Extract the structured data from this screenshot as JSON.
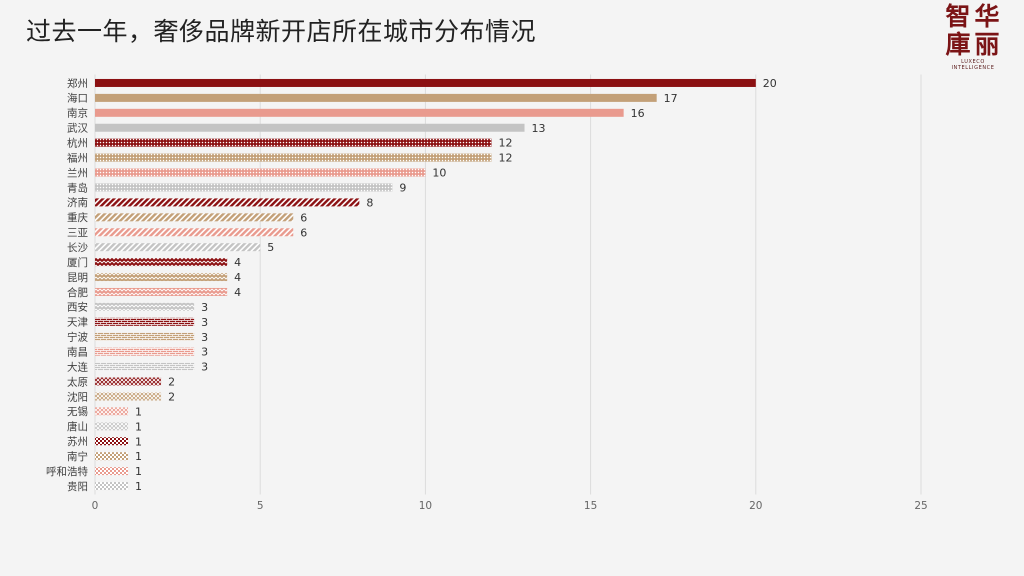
{
  "slide": {
    "title": "过去一年，奢侈品牌新开店所在城市分布情况"
  },
  "logo": {
    "chars": [
      "智",
      "华",
      "庫",
      "丽"
    ],
    "en_line1": "LUXECO",
    "en_line2": "INTELLIGENCE"
  },
  "colors": {
    "background": "#f4f4f4",
    "title_text": "#222222",
    "logo": "#7b1416",
    "bar_palette": [
      "#8b1012",
      "#c3a078",
      "#e99a8e",
      "#c4c4c4"
    ],
    "grid": "#dcdcdc"
  },
  "chart_data": {
    "type": "bar",
    "orientation": "horizontal",
    "categories": [
      "郑州",
      "海口",
      "南京",
      "武汉",
      "杭州",
      "福州",
      "兰州",
      "青岛",
      "济南",
      "重庆",
      "三亚",
      "长沙",
      "厦门",
      "昆明",
      "合肥",
      "西安",
      "天津",
      "宁波",
      "南昌",
      "大连",
      "太原",
      "沈阳",
      "无锡",
      "唐山",
      "苏州",
      "南宁",
      "呼和浩特",
      "贵阳"
    ],
    "values": [
      20,
      17,
      16,
      13,
      12,
      12,
      10,
      9,
      8,
      6,
      6,
      5,
      4,
      4,
      4,
      3,
      3,
      3,
      3,
      3,
      2,
      2,
      1,
      1,
      1,
      1,
      1,
      1
    ],
    "xlim": [
      0,
      25
    ],
    "xticks": [
      0,
      5,
      10,
      15,
      20,
      25
    ],
    "xlabel": "",
    "ylabel": "",
    "grid": "vertical",
    "legend": "none"
  }
}
